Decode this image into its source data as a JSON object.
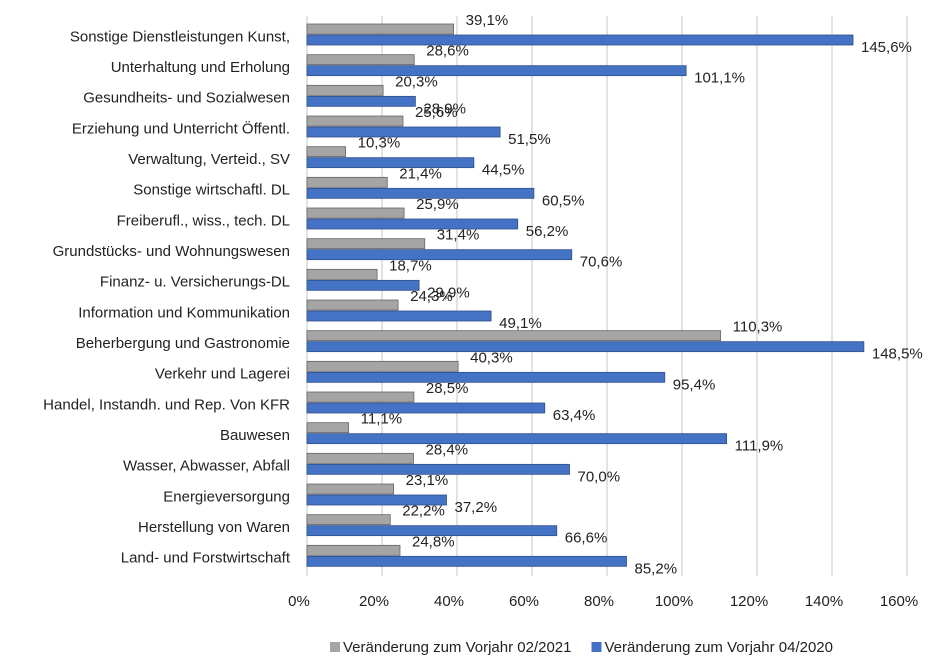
{
  "chart_data": {
    "type": "bar",
    "orientation": "horizontal",
    "categories": [
      "Sonstige Dienstleistungen Kunst,",
      "Unterhaltung und Erholung",
      "Gesundheits- und Sozialwesen",
      "Erziehung und Unterricht Öffentl.",
      "Verwaltung, Verteid., SV",
      "Sonstige wirtschaftl. DL",
      "Freiberufl., wiss., tech. DL",
      "Grundstücks- und Wohnungswesen",
      "Finanz- u. Versicherungs-DL",
      "Information und Kommunikation",
      "Beherbergung und Gastronomie",
      "Verkehr und Lagerei",
      "Handel, Instandh. und Rep. Von KFR",
      "Bauwesen",
      "Wasser, Abwasser, Abfall",
      "Energieversorgung",
      "Herstellung von Waren",
      "Land- und Forstwirtschaft"
    ],
    "series": [
      {
        "name": "Veränderung zum Vorjahr 02/2021",
        "color": "#a5a5a5",
        "values": [
          39.1,
          28.6,
          20.3,
          25.6,
          10.3,
          21.4,
          25.9,
          31.4,
          18.7,
          24.3,
          110.3,
          40.3,
          28.5,
          11.1,
          28.4,
          23.1,
          22.2,
          24.8
        ],
        "value_labels": [
          "39,1%",
          "28,6%",
          "20,3%",
          "25,6%",
          "10,3%",
          "21,4%",
          "25,9%",
          "31,4%",
          "18,7%",
          "24,3%",
          "110,3%",
          "40,3%",
          "28,5%",
          "11,1%",
          "28,4%",
          "23,1%",
          "22,2%",
          "24,8%"
        ]
      },
      {
        "name": "Veränderung zum Vorjahr 04/2020",
        "color": "#4472c4",
        "values": [
          145.6,
          101.1,
          28.9,
          51.5,
          44.5,
          60.5,
          56.2,
          70.6,
          29.9,
          49.1,
          148.5,
          95.4,
          63.4,
          111.9,
          70.0,
          37.2,
          66.6,
          85.2
        ],
        "value_labels": [
          "145,6%",
          "101,1%",
          "28,9%",
          "51,5%",
          "44,5%",
          "60,5%",
          "56,2%",
          "70,6%",
          "29,9%",
          "49,1%",
          "148,5%",
          "95,4%",
          "63,4%",
          "111,9%",
          "70,0%",
          "37,2%",
          "66,6%",
          "85,2%"
        ]
      }
    ],
    "xlim": [
      0,
      160
    ],
    "xticks": [
      {
        "value": 0,
        "label": "0%"
      },
      {
        "value": 20,
        "label": "20%"
      },
      {
        "value": 40,
        "label": "40%"
      },
      {
        "value": 60,
        "label": "60%"
      },
      {
        "value": 80,
        "label": "80%"
      },
      {
        "value": 100,
        "label": "100%"
      },
      {
        "value": 120,
        "label": "120%"
      },
      {
        "value": 140,
        "label": "140%"
      },
      {
        "value": 160,
        "label": "160%"
      }
    ],
    "grid": true,
    "legend": "bottom"
  }
}
